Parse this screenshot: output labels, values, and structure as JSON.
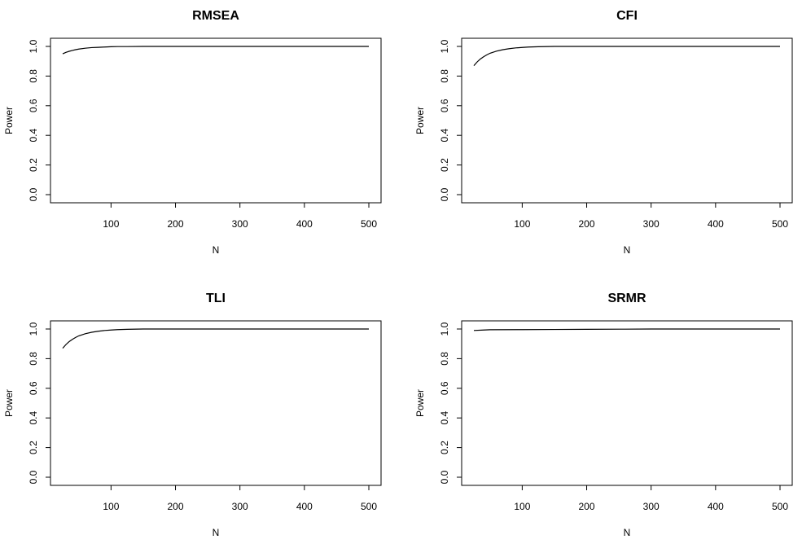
{
  "chart_data": [
    {
      "type": "line",
      "title": "RMSEA",
      "xlabel": "N",
      "ylabel": "Power",
      "xlim": [
        25,
        500
      ],
      "ylim": [
        0,
        1
      ],
      "x_ticks": [
        100,
        200,
        300,
        400,
        500
      ],
      "y_ticks": [
        0.0,
        0.2,
        0.4,
        0.6,
        0.8,
        1.0
      ],
      "y_tick_labels": [
        "0.0",
        "0.2",
        "0.4",
        "0.6",
        "0.8",
        "1.0"
      ],
      "series": [
        {
          "name": "RMSEA",
          "x": [
            25,
            30,
            35,
            40,
            45,
            50,
            60,
            70,
            80,
            90,
            100,
            110,
            125,
            150,
            200,
            250,
            300,
            350,
            400,
            450,
            500
          ],
          "y": [
            0.95,
            0.96,
            0.967,
            0.973,
            0.978,
            0.982,
            0.988,
            0.992,
            0.994,
            0.996,
            0.998,
            0.999,
            0.999,
            1.0,
            1.0,
            1.0,
            1.0,
            1.0,
            1.0,
            1.0,
            1.0
          ]
        }
      ]
    },
    {
      "type": "line",
      "title": "CFI",
      "xlabel": "N",
      "ylabel": "Power",
      "xlim": [
        25,
        500
      ],
      "ylim": [
        0,
        1
      ],
      "x_ticks": [
        100,
        200,
        300,
        400,
        500
      ],
      "y_ticks": [
        0.0,
        0.2,
        0.4,
        0.6,
        0.8,
        1.0
      ],
      "y_tick_labels": [
        "0.0",
        "0.2",
        "0.4",
        "0.6",
        "0.8",
        "1.0"
      ],
      "series": [
        {
          "name": "CFI",
          "x": [
            25,
            30,
            35,
            40,
            45,
            50,
            60,
            70,
            80,
            90,
            100,
            110,
            125,
            150,
            200,
            250,
            300,
            350,
            400,
            450,
            500
          ],
          "y": [
            0.87,
            0.895,
            0.915,
            0.93,
            0.943,
            0.954,
            0.968,
            0.978,
            0.985,
            0.99,
            0.993,
            0.996,
            0.998,
            1.0,
            1.0,
            1.0,
            1.0,
            1.0,
            1.0,
            1.0,
            1.0
          ]
        }
      ]
    },
    {
      "type": "line",
      "title": "TLI",
      "xlabel": "N",
      "ylabel": "Power",
      "xlim": [
        25,
        500
      ],
      "ylim": [
        0,
        1
      ],
      "x_ticks": [
        100,
        200,
        300,
        400,
        500
      ],
      "y_ticks": [
        0.0,
        0.2,
        0.4,
        0.6,
        0.8,
        1.0
      ],
      "y_tick_labels": [
        "0.0",
        "0.2",
        "0.4",
        "0.6",
        "0.8",
        "1.0"
      ],
      "series": [
        {
          "name": "TLI",
          "x": [
            25,
            30,
            35,
            40,
            45,
            50,
            60,
            70,
            80,
            90,
            100,
            110,
            125,
            150,
            200,
            250,
            300,
            350,
            400,
            450,
            500
          ],
          "y": [
            0.87,
            0.895,
            0.915,
            0.93,
            0.943,
            0.954,
            0.968,
            0.978,
            0.985,
            0.99,
            0.993,
            0.996,
            0.998,
            1.0,
            1.0,
            1.0,
            1.0,
            1.0,
            1.0,
            1.0,
            1.0
          ]
        }
      ]
    },
    {
      "type": "line",
      "title": "SRMR",
      "xlabel": "N",
      "ylabel": "Power",
      "xlim": [
        25,
        500
      ],
      "ylim": [
        0,
        1
      ],
      "x_ticks": [
        100,
        200,
        300,
        400,
        500
      ],
      "y_ticks": [
        0.0,
        0.2,
        0.4,
        0.6,
        0.8,
        1.0
      ],
      "y_tick_labels": [
        "0.0",
        "0.2",
        "0.4",
        "0.6",
        "0.8",
        "1.0"
      ],
      "series": [
        {
          "name": "SRMR",
          "x": [
            25,
            40,
            50,
            100,
            150,
            200,
            260,
            300,
            400,
            500
          ],
          "y": [
            0.99,
            0.993,
            0.995,
            0.996,
            0.997,
            0.998,
            0.999,
            1.0,
            1.0,
            1.0
          ]
        }
      ]
    }
  ]
}
